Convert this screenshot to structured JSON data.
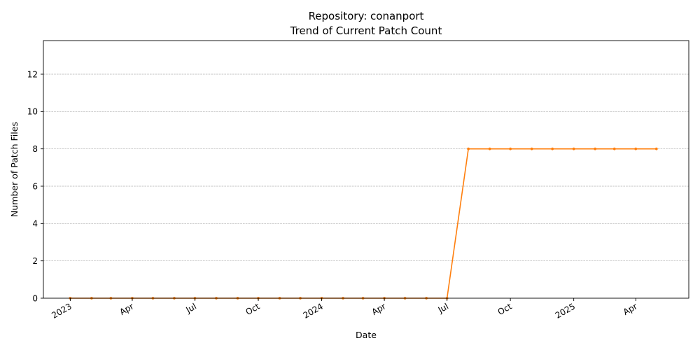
{
  "chart_data": {
    "type": "line",
    "title_line1": "Repository: conanport",
    "title_line2": "Trend of Current Patch Count",
    "xlabel": "Date",
    "ylabel": "Number of Patch Files",
    "ylim": [
      0,
      13.8
    ],
    "xlim": [
      "2022-11-23",
      "2025-06-17"
    ],
    "yticks": [
      0,
      2,
      4,
      6,
      8,
      10,
      12
    ],
    "xticks": [
      {
        "label": "2023",
        "date": "2023-01-01"
      },
      {
        "label": "Apr",
        "date": "2023-04-01"
      },
      {
        "label": "Jul",
        "date": "2023-07-01"
      },
      {
        "label": "Oct",
        "date": "2023-10-01"
      },
      {
        "label": "2024",
        "date": "2024-01-01"
      },
      {
        "label": "Apr",
        "date": "2024-04-01"
      },
      {
        "label": "Jul",
        "date": "2024-07-01"
      },
      {
        "label": "Oct",
        "date": "2024-10-01"
      },
      {
        "label": "2025",
        "date": "2025-01-01"
      },
      {
        "label": "Apr",
        "date": "2025-04-01"
      }
    ],
    "grid": "y-dashed",
    "series": [
      {
        "color": "#ff7f0e",
        "points": [
          {
            "date": "2023-01-01",
            "value": 0
          },
          {
            "date": "2023-02-01",
            "value": 0
          },
          {
            "date": "2023-03-01",
            "value": 0
          },
          {
            "date": "2023-04-01",
            "value": 0
          },
          {
            "date": "2023-05-01",
            "value": 0
          },
          {
            "date": "2023-06-01",
            "value": 0
          },
          {
            "date": "2023-07-01",
            "value": 0
          },
          {
            "date": "2023-08-01",
            "value": 0
          },
          {
            "date": "2023-09-01",
            "value": 0
          },
          {
            "date": "2023-10-01",
            "value": 0
          },
          {
            "date": "2023-11-01",
            "value": 0
          },
          {
            "date": "2023-12-01",
            "value": 0
          },
          {
            "date": "2024-01-01",
            "value": 0
          },
          {
            "date": "2024-02-01",
            "value": 0
          },
          {
            "date": "2024-03-01",
            "value": 0
          },
          {
            "date": "2024-04-01",
            "value": 0
          },
          {
            "date": "2024-05-01",
            "value": 0
          },
          {
            "date": "2024-06-01",
            "value": 0
          },
          {
            "date": "2024-07-01",
            "value": 0
          },
          {
            "date": "2024-08-01",
            "value": 8
          },
          {
            "date": "2024-09-01",
            "value": 8
          },
          {
            "date": "2024-10-01",
            "value": 8
          },
          {
            "date": "2024-11-01",
            "value": 8
          },
          {
            "date": "2024-12-01",
            "value": 8
          },
          {
            "date": "2025-01-01",
            "value": 8
          },
          {
            "date": "2025-02-01",
            "value": 8
          },
          {
            "date": "2025-03-01",
            "value": 8
          },
          {
            "date": "2025-04-01",
            "value": 8
          },
          {
            "date": "2025-05-01",
            "value": 8
          }
        ]
      }
    ]
  }
}
